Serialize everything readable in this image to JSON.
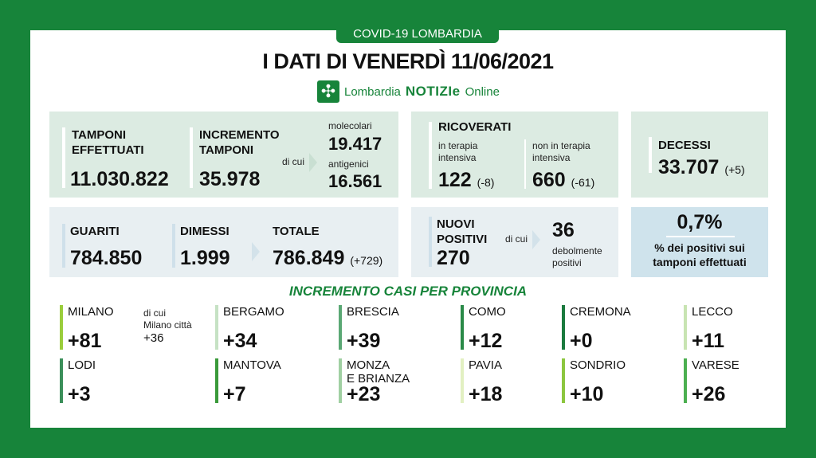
{
  "header": {
    "tag": "COVID-19 LOMBARDIA",
    "title": "I DATI DI VENERDÌ 11/06/2021",
    "logo": {
      "pre": "Lombardia",
      "brand": "NOTIZIe",
      "post": "Online",
      "icon": "cross-flower-icon"
    }
  },
  "tamponi": {
    "label1": "TAMPONI",
    "label2": "EFFETTUATI",
    "value": "11.030.822"
  },
  "incremento": {
    "label1": "INCREMENTO",
    "label2": "TAMPONI",
    "value": "35.978",
    "dicui": "di cui",
    "mol_label": "molecolari",
    "mol_value": "19.417",
    "ant_label": "antigenici",
    "ant_value": "16.561"
  },
  "ricoverati": {
    "label": "RICOVERATI",
    "ti_label1": "in terapia",
    "ti_label2": "intensiva",
    "ti_value": "122",
    "ti_delta": "(-8)",
    "nti_label1": "non in terapia",
    "nti_label2": "intensiva",
    "nti_value": "660",
    "nti_delta": "(-61)"
  },
  "decessi": {
    "label": "DECESSI",
    "value": "33.707",
    "delta": "(+5)"
  },
  "guariti": {
    "label": "GUARITI",
    "value": "784.850"
  },
  "dimessi": {
    "label": "DIMESSI",
    "value": "1.999"
  },
  "totale": {
    "label": "TOTALE",
    "value": "786.849",
    "delta": "(+729)"
  },
  "nuovi": {
    "label1": "NUOVI",
    "label2": "POSITIVI",
    "value": "270",
    "dicui": "di cui",
    "deb_value": "36",
    "deb_label1": "debolmente",
    "deb_label2": "positivi"
  },
  "percent": {
    "value": "0,7%",
    "label1": "% dei positivi sui",
    "label2": "tamponi effettuati"
  },
  "section_title": "INCREMENTO CASI PER PROVINCIA",
  "provinces": [
    {
      "name": "MILANO",
      "value": "+81",
      "color": "#9acd3c"
    },
    {
      "name": "BERGAMO",
      "value": "+34",
      "color": "#c6e2c4"
    },
    {
      "name": "BRESCIA",
      "value": "+39",
      "color": "#5aa874"
    },
    {
      "name": "COMO",
      "value": "+12",
      "color": "#2a8a48"
    },
    {
      "name": "CREMONA",
      "value": "+0",
      "color": "#1b7a3e"
    },
    {
      "name": "LECCO",
      "value": "+11",
      "color": "#c8e4b2"
    },
    {
      "name": "LODI",
      "value": "+3",
      "color": "#3b8f5a"
    },
    {
      "name": "MANTOVA",
      "value": "+7",
      "color": "#3a9a3a"
    },
    {
      "name": "MONZA",
      "name2": "E BRIANZA",
      "value": "+23",
      "color": "#a0d0a2"
    },
    {
      "name": "PAVIA",
      "value": "+18",
      "color": "#e2f0c2"
    },
    {
      "name": "SONDRIO",
      "value": "+10",
      "color": "#8cc63f"
    },
    {
      "name": "VARESE",
      "value": "+26",
      "color": "#4caf50"
    }
  ],
  "milano_city": {
    "l1": "di cui",
    "l2": "Milano città",
    "value": "+36"
  }
}
